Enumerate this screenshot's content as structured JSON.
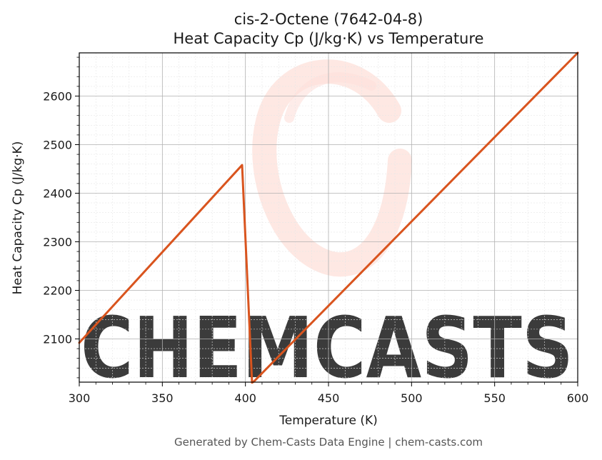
{
  "chart_data": {
    "type": "line",
    "title": "cis-2-Octene (7642-04-8)",
    "subtitle": "Heat Capacity Cp (J/kg·K) vs Temperature",
    "xlabel": "Temperature (K)",
    "ylabel": "Heat Capacity Cp (J/kg·K)",
    "xlim": [
      300,
      600
    ],
    "ylim": [
      2011,
      2689
    ],
    "x_ticks": [
      300,
      350,
      400,
      450,
      500,
      550,
      600
    ],
    "y_ticks": [
      2100,
      2200,
      2300,
      2400,
      2500,
      2600
    ],
    "grid": true,
    "series": [
      {
        "color": "#d9541e",
        "x": [
          300,
          398,
          404,
          405,
          600
        ],
        "y": [
          2092,
          2458,
          2010,
          2012,
          2689
        ]
      }
    ]
  },
  "watermark": {
    "text": "CHEMCASTS",
    "color": "#fde0da"
  },
  "footer": "Generated by Chem-Casts Data Engine | chem-casts.com"
}
